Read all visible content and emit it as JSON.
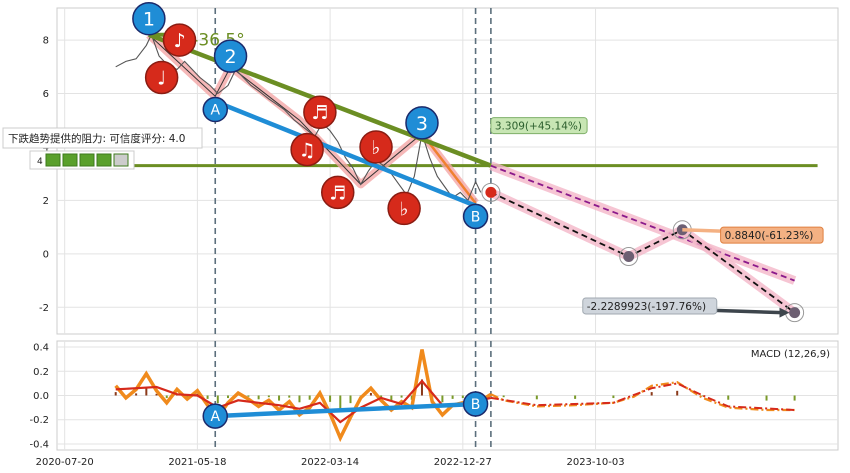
{
  "chart_data": {
    "type": "line",
    "main_panel": {
      "y_ticks": [
        -2,
        0,
        2,
        4,
        6,
        8
      ],
      "ylim": [
        -3,
        9.2
      ],
      "angle_label": "-36.5°",
      "resistance_label": "下跌趋势提供的阻力: 可信度评分: 4.0",
      "resistance_level": 3.3,
      "price_series": [
        [
          0.0,
          7.0
        ],
        [
          0.4,
          7.2
        ],
        [
          0.8,
          7.3
        ],
        [
          1.2,
          7.8
        ],
        [
          1.4,
          8.2
        ],
        [
          1.7,
          7.4
        ],
        [
          2.0,
          7.1
        ],
        [
          2.4,
          6.9
        ],
        [
          2.7,
          7.2
        ],
        [
          3.0,
          6.9
        ],
        [
          3.3,
          6.6
        ],
        [
          3.7,
          6.3
        ],
        [
          4.0,
          6.0
        ],
        [
          4.4,
          6.3
        ],
        [
          4.7,
          6.9
        ],
        [
          5.0,
          6.6
        ],
        [
          5.3,
          6.3
        ],
        [
          5.6,
          6.1
        ],
        [
          6.0,
          5.8
        ],
        [
          6.3,
          5.6
        ],
        [
          6.6,
          5.4
        ],
        [
          7.0,
          5.0
        ],
        [
          7.4,
          4.7
        ],
        [
          7.8,
          4.4
        ],
        [
          8.1,
          4.9
        ],
        [
          8.4,
          4.6
        ],
        [
          8.7,
          4.2
        ],
        [
          9.0,
          3.6
        ],
        [
          9.3,
          3.2
        ],
        [
          9.6,
          2.6
        ],
        [
          9.9,
          3.1
        ],
        [
          10.2,
          3.5
        ],
        [
          10.5,
          3.3
        ],
        [
          10.8,
          3.0
        ],
        [
          11.1,
          2.6
        ],
        [
          11.4,
          2.2
        ],
        [
          11.7,
          2.9
        ],
        [
          12.0,
          4.5
        ],
        [
          12.3,
          3.6
        ],
        [
          12.6,
          2.9
        ],
        [
          12.9,
          2.5
        ],
        [
          13.2,
          2.1
        ],
        [
          13.5,
          2.3
        ],
        [
          13.8,
          2.0
        ],
        [
          14.1,
          2.7
        ],
        [
          14.3,
          2.3
        ]
      ],
      "trend_lines": [
        {
          "name": "green-resistance",
          "points": [
            [
              1.3,
              8.2
            ],
            [
              14.7,
              3.3
            ]
          ],
          "color": "#6b8e23"
        },
        {
          "name": "blue-support",
          "points": [
            [
              3.9,
              5.7
            ],
            [
              14.1,
              1.8
            ]
          ],
          "color": "#1f8dd6"
        },
        {
          "name": "green-horizontal",
          "points": [
            [
              -2.2,
              3.3
            ],
            [
              27.5,
              3.3
            ]
          ],
          "color": "#6b8e23"
        }
      ],
      "projection_upper": {
        "points": [
          [
            14.7,
            3.3
          ],
          [
            26.6,
            -1.0
          ]
        ],
        "color": "#8b1a8b"
      },
      "projection_lower": {
        "points": [
          [
            14.7,
            2.3
          ],
          [
            20.1,
            -0.1
          ],
          [
            22.2,
            0.9
          ],
          [
            26.6,
            -2.2
          ]
        ],
        "color": "#111111"
      },
      "annotations": [
        {
          "text": "3.309(+45.14%)",
          "x": 14.7,
          "y": 4.8,
          "bg": "#c8e6b4",
          "fg": "#2c5f2d",
          "border": "#7fb069"
        },
        {
          "text": "0.8840(-61.23%)",
          "x": 23.7,
          "y": 0.7,
          "bg": "#f4b183",
          "fg": "#222222",
          "border": "#e08040"
        },
        {
          "text": "-2.2289923(-197.76%)",
          "x": 18.3,
          "y": -1.95,
          "bg": "#cfd5dc",
          "fg": "#222222",
          "border": "#a0a8b0"
        }
      ],
      "markers": [
        {
          "label": "1",
          "x": 1.3,
          "y": 8.8,
          "fill": "#1f8dd6"
        },
        {
          "label": "2",
          "x": 4.5,
          "y": 7.4,
          "fill": "#1f8dd6"
        },
        {
          "label": "3",
          "x": 12.0,
          "y": 4.9,
          "fill": "#1f8dd6"
        },
        {
          "label": "A",
          "x": 3.9,
          "y": 5.4,
          "fill": "#1f8dd6"
        },
        {
          "label": "B",
          "x": 14.1,
          "y": 1.4,
          "fill": "#1f8dd6"
        },
        {
          "label": "♪",
          "x": 2.5,
          "y": 8.0,
          "fill": "#d62a1b"
        },
        {
          "label": "♩",
          "x": 1.8,
          "y": 6.6,
          "fill": "#d62a1b"
        },
        {
          "label": "♬",
          "x": 8.0,
          "y": 5.3,
          "fill": "#d62a1b"
        },
        {
          "label": "♫",
          "x": 7.5,
          "y": 3.9,
          "fill": "#d62a1b"
        },
        {
          "label": "♬",
          "x": 8.7,
          "y": 2.3,
          "fill": "#d62a1b"
        },
        {
          "label": "♭",
          "x": 10.2,
          "y": 4.0,
          "fill": "#d62a1b"
        },
        {
          "label": "♭",
          "x": 11.3,
          "y": 1.7,
          "fill": "#d62a1b"
        }
      ],
      "small_legend": "4"
    },
    "macd_panel": {
      "title": "MACD (12,26,9)",
      "y_ticks": [
        -0.4,
        -0.2,
        0.0,
        0.2,
        0.4
      ],
      "ylim": [
        -0.45,
        0.45
      ],
      "macd_line": [
        [
          0.0,
          0.08
        ],
        [
          0.4,
          -0.02
        ],
        [
          0.8,
          0.05
        ],
        [
          1.2,
          0.18
        ],
        [
          1.6,
          0.04
        ],
        [
          2.0,
          -0.06
        ],
        [
          2.4,
          0.05
        ],
        [
          2.8,
          -0.03
        ],
        [
          3.2,
          0.04
        ],
        [
          3.6,
          -0.08
        ],
        [
          4.0,
          -0.18
        ],
        [
          4.4,
          -0.06
        ],
        [
          4.8,
          0.02
        ],
        [
          5.2,
          -0.03
        ],
        [
          5.6,
          -0.09
        ],
        [
          6.0,
          -0.04
        ],
        [
          6.4,
          -0.12
        ],
        [
          6.8,
          -0.05
        ],
        [
          7.2,
          -0.16
        ],
        [
          7.6,
          -0.1
        ],
        [
          8.0,
          0.02
        ],
        [
          8.4,
          -0.15
        ],
        [
          8.8,
          -0.35
        ],
        [
          9.2,
          -0.18
        ],
        [
          9.6,
          -0.02
        ],
        [
          10.0,
          0.06
        ],
        [
          10.4,
          -0.04
        ],
        [
          10.8,
          -0.12
        ],
        [
          11.2,
          -0.05
        ],
        [
          11.6,
          -0.1
        ],
        [
          12.0,
          0.38
        ],
        [
          12.4,
          -0.05
        ],
        [
          12.8,
          -0.16
        ],
        [
          13.2,
          -0.08
        ],
        [
          13.6,
          -0.06
        ],
        [
          14.1,
          -0.07
        ],
        [
          14.7,
          0.01
        ],
        [
          15.2,
          -0.04
        ],
        [
          16.5,
          -0.09
        ],
        [
          18.0,
          -0.08
        ],
        [
          19.5,
          -0.06
        ],
        [
          20.3,
          -0.01
        ],
        [
          21.0,
          0.08
        ],
        [
          22.0,
          0.11
        ],
        [
          23.0,
          -0.02
        ],
        [
          24.0,
          -0.1
        ],
        [
          25.5,
          -0.12
        ],
        [
          26.6,
          -0.12
        ]
      ],
      "signal_line": [
        [
          0.0,
          0.05
        ],
        [
          0.8,
          0.06
        ],
        [
          1.6,
          0.07
        ],
        [
          2.4,
          0.01
        ],
        [
          3.2,
          0.0
        ],
        [
          4.0,
          -0.1
        ],
        [
          4.8,
          -0.04
        ],
        [
          5.6,
          -0.06
        ],
        [
          6.4,
          -0.08
        ],
        [
          7.2,
          -0.11
        ],
        [
          8.0,
          -0.06
        ],
        [
          8.8,
          -0.22
        ],
        [
          9.6,
          -0.1
        ],
        [
          10.4,
          -0.02
        ],
        [
          11.2,
          -0.07
        ],
        [
          12.0,
          0.12
        ],
        [
          12.8,
          -0.08
        ],
        [
          13.6,
          -0.07
        ],
        [
          14.7,
          -0.02
        ],
        [
          16.5,
          -0.08
        ],
        [
          19.5,
          -0.06
        ],
        [
          21.0,
          0.06
        ],
        [
          22.0,
          0.1
        ],
        [
          23.0,
          0.0
        ],
        [
          24.0,
          -0.09
        ],
        [
          26.6,
          -0.12
        ]
      ],
      "divergence_line": {
        "points": [
          [
            3.9,
            -0.17
          ],
          [
            14.1,
            -0.07
          ]
        ],
        "color": "#1f8dd6"
      },
      "markers": [
        {
          "label": "A",
          "x": 3.9,
          "y": -0.17,
          "fill": "#1f8dd6"
        },
        {
          "label": "B",
          "x": 14.1,
          "y": -0.07,
          "fill": "#1f8dd6"
        }
      ]
    },
    "x_ticks": [
      {
        "label": "2020-07-20",
        "x": -2.0
      },
      {
        "label": "2021-05-18",
        "x": 3.2
      },
      {
        "label": "2022-03-14",
        "x": 8.4
      },
      {
        "label": "2022-12-27",
        "x": 13.6
      },
      {
        "label": "2023-10-03",
        "x": 18.8
      }
    ],
    "vertical_markers": [
      3.9,
      14.1,
      14.7
    ],
    "xlim": [
      -2.3,
      28.3
    ]
  }
}
